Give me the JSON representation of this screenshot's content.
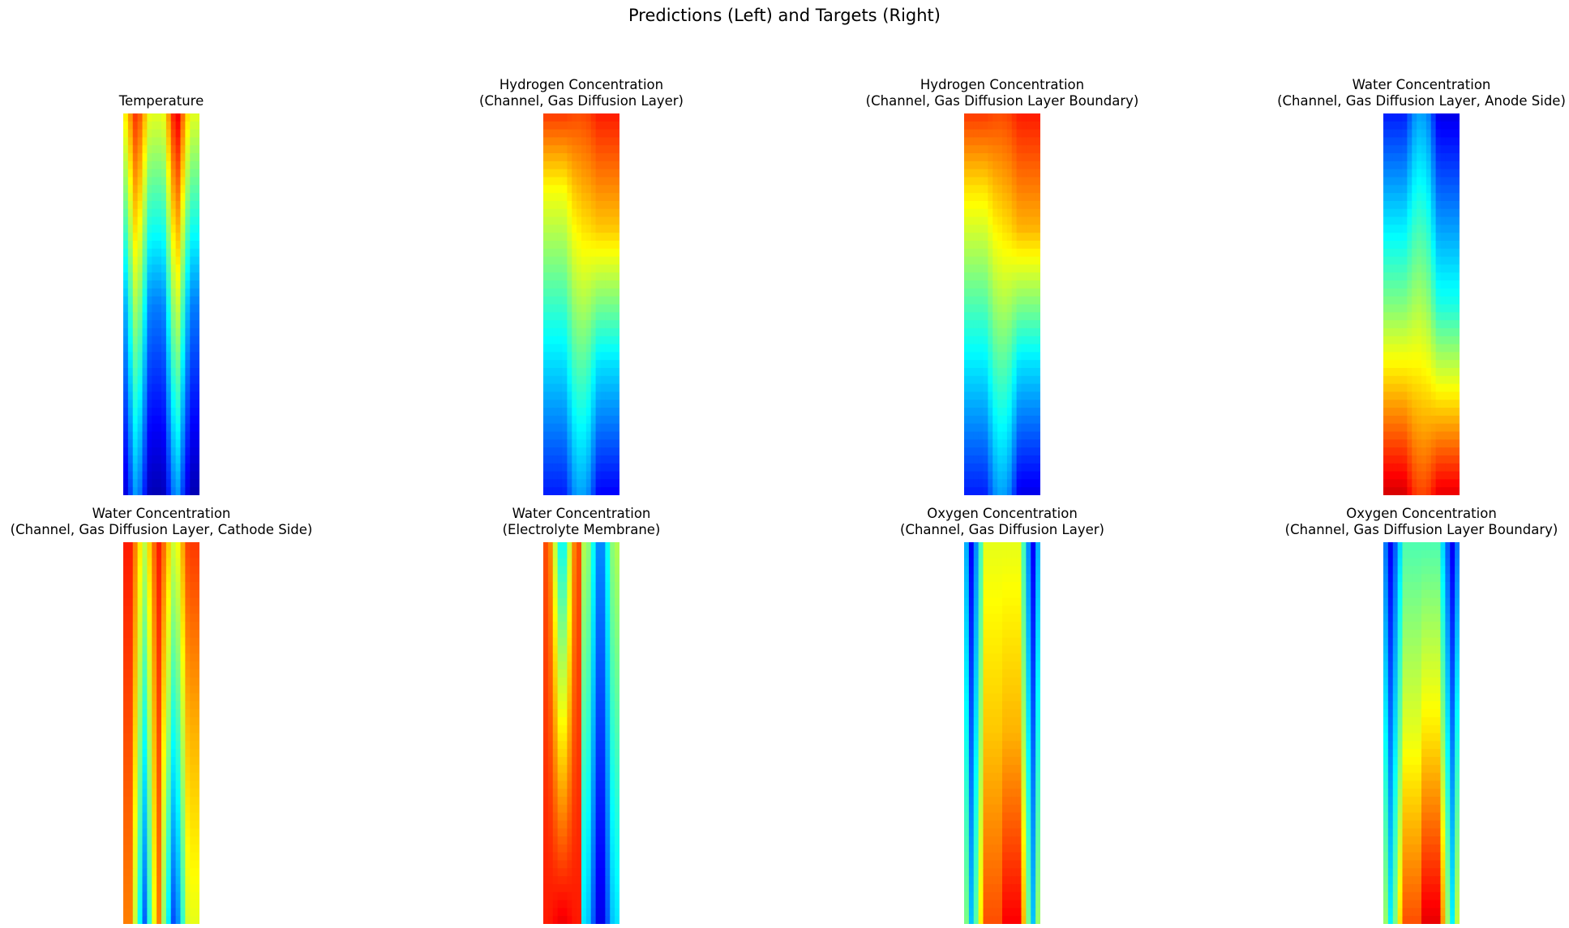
{
  "figure": {
    "title": "Predictions (Left) and Targets (Right)"
  },
  "chart_data": [
    {
      "type": "heatmap",
      "title": "Temperature",
      "colormap": "jet",
      "axes": "off",
      "columns": [
        {
          "stops": [
            [
              0,
              0.6
            ],
            [
              0.5,
              0.25
            ],
            [
              1,
              0.05
            ]
          ],
          "stripe_center": 0.35,
          "stripe_start": 0.85,
          "stripe_end": 0.3
        },
        {
          "stops": [
            [
              0,
              0.6
            ],
            [
              0.5,
              0.25
            ],
            [
              1,
              0.05
            ]
          ],
          "stripe_center": 0.4,
          "stripe_start": 0.92,
          "stripe_end": 0.3
        }
      ]
    },
    {
      "type": "heatmap",
      "title": "Hydrogen Concentration\n(Channel, Gas Diffusion Layer)",
      "colormap": "jet",
      "axes": "off",
      "columns": [
        {
          "stops": [
            [
              0,
              0.82
            ],
            [
              0.2,
              0.62
            ],
            [
              0.55,
              0.4
            ],
            [
              1,
              0.15
            ]
          ],
          "stripe_center": 0.9,
          "stripe_start": 0.8,
          "stripe_end": 0.3
        },
        {
          "stops": [
            [
              0,
              0.85
            ],
            [
              0.3,
              0.68
            ],
            [
              0.65,
              0.35
            ],
            [
              1,
              0.12
            ]
          ],
          "stripe_center": 0.1,
          "stripe_start": 0.8,
          "stripe_end": 0.3
        }
      ]
    },
    {
      "type": "heatmap",
      "title": "Hydrogen Concentration\n(Channel, Gas Diffusion Layer Boundary)",
      "colormap": "jet",
      "axes": "off",
      "columns": [
        {
          "stops": [
            [
              0,
              0.82
            ],
            [
              0.2,
              0.65
            ],
            [
              0.55,
              0.42
            ],
            [
              1,
              0.15
            ]
          ],
          "stripe_center": 0.9,
          "stripe_start": 0.8,
          "stripe_end": 0.3
        },
        {
          "stops": [
            [
              0,
              0.85
            ],
            [
              0.3,
              0.7
            ],
            [
              0.65,
              0.35
            ],
            [
              1,
              0.1
            ]
          ],
          "stripe_center": 0.1,
          "stripe_start": 0.8,
          "stripe_end": 0.3
        }
      ]
    },
    {
      "type": "heatmap",
      "title": "Water Concentration\n(Channel, Gas Diffusion Layer, Anode Side)",
      "colormap": "jet",
      "axes": "off",
      "columns": [
        {
          "stops": [
            [
              0,
              0.15
            ],
            [
              0.5,
              0.5
            ],
            [
              1,
              0.92
            ]
          ],
          "stripe_center": 0.9,
          "stripe_start": 0.3,
          "stripe_end": 0.8
        },
        {
          "stops": [
            [
              0,
              0.1
            ],
            [
              0.5,
              0.4
            ],
            [
              1,
              0.9
            ]
          ],
          "stripe_center": 0.1,
          "stripe_start": 0.3,
          "stripe_end": 0.8
        }
      ]
    },
    {
      "type": "heatmap",
      "title": "Water Concentration\n(Channel, Gas Diffusion Layer, Cathode Side)",
      "colormap": "jet",
      "axes": "off",
      "columns": [
        {
          "stops": [
            [
              0,
              0.85
            ],
            [
              0.5,
              0.8
            ],
            [
              1,
              0.75
            ]
          ],
          "stripe_center": 0.55,
          "stripe_start": 0.55,
          "stripe_end": 0.2
        },
        {
          "stops": [
            [
              0,
              0.82
            ],
            [
              0.5,
              0.7
            ],
            [
              1,
              0.6
            ]
          ],
          "stripe_center": 0.35,
          "stripe_start": 0.55,
          "stripe_end": 0.15
        }
      ]
    },
    {
      "type": "heatmap",
      "title": "Water Concentration\n(Electrolyte Membrane)",
      "colormap": "jet",
      "axes": "off",
      "columns": [
        {
          "stops": [
            [
              0,
              0.8
            ],
            [
              0.5,
              0.82
            ],
            [
              1,
              0.85
            ]
          ],
          "stripe_center": 0.5,
          "stripe_start": 0.3,
          "stripe_end": 0.9
        },
        {
          "stops": [
            [
              0,
              0.55
            ],
            [
              0.5,
              0.45
            ],
            [
              1,
              0.35
            ]
          ],
          "stripe_center": 0.5,
          "stripe_start": 0.2,
          "stripe_end": 0.05
        }
      ]
    },
    {
      "type": "heatmap",
      "title": "Oxygen Concentration\n(Channel, Gas Diffusion Layer)",
      "colormap": "jet",
      "axes": "off",
      "columns": [
        {
          "stops": [
            [
              0,
              0.6
            ],
            [
              0.5,
              0.68
            ],
            [
              1,
              0.8
            ]
          ],
          "stripe_center": 0.2,
          "stripe_start": 0.1,
          "stripe_end": 0.3
        },
        {
          "stops": [
            [
              0,
              0.6
            ],
            [
              0.5,
              0.7
            ],
            [
              1,
              0.88
            ]
          ],
          "stripe_center": 0.8,
          "stripe_start": 0.1,
          "stripe_end": 0.3
        }
      ]
    },
    {
      "type": "heatmap",
      "title": "Oxygen Concentration\n(Channel, Gas Diffusion Layer Boundary)",
      "colormap": "jet",
      "axes": "off",
      "columns": [
        {
          "stops": [
            [
              0,
              0.45
            ],
            [
              0.5,
              0.6
            ],
            [
              1,
              0.8
            ]
          ],
          "stripe_center": 0.2,
          "stripe_start": 0.1,
          "stripe_end": 0.35
        },
        {
          "stops": [
            [
              0,
              0.45
            ],
            [
              0.5,
              0.65
            ],
            [
              1,
              0.9
            ]
          ],
          "stripe_center": 0.8,
          "stripe_start": 0.1,
          "stripe_end": 0.35
        }
      ]
    }
  ]
}
